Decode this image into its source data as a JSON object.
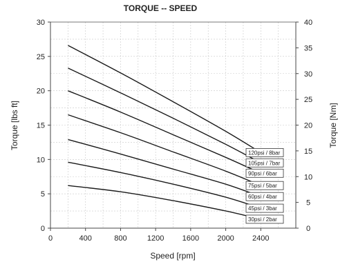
{
  "chart_data": {
    "type": "line",
    "title": "TORQUE -- SPEED",
    "xlabel": "Speed [rpm]",
    "ylabel": "Torque [lbs ft]",
    "y2label": "Torque [Nm]",
    "xlim": [
      0,
      2800
    ],
    "ylim": [
      0,
      30
    ],
    "y2lim": [
      0,
      40
    ],
    "xticks": [
      "0",
      "400",
      "800",
      "1200",
      "1600",
      "2000",
      "2400"
    ],
    "yticks": [
      "0",
      "5",
      "10",
      "15",
      "20",
      "25",
      "30"
    ],
    "y2ticks": [
      "0",
      "5",
      "10",
      "15",
      "20",
      "25",
      "30",
      "35",
      "40"
    ],
    "grid": true,
    "series": [
      {
        "name": "30psi / 2bar",
        "x": [
          200,
          800,
          1400,
          2000,
          2400
        ],
        "y": [
          6.2,
          5.3,
          4.0,
          2.5,
          1.3
        ]
      },
      {
        "name": "45psi / 3bar",
        "x": [
          200,
          800,
          1400,
          2000,
          2400
        ],
        "y": [
          9.6,
          8.1,
          6.4,
          4.5,
          2.9
        ]
      },
      {
        "name": "60psi / 4bar",
        "x": [
          200,
          800,
          1400,
          2000,
          2400
        ],
        "y": [
          12.9,
          10.8,
          8.6,
          6.4,
          4.6
        ]
      },
      {
        "name": "75psi / 5bar",
        "x": [
          200,
          800,
          1400,
          2000,
          2400
        ],
        "y": [
          16.5,
          13.9,
          11.1,
          8.3,
          6.2
        ]
      },
      {
        "name": "90psi / 6bar",
        "x": [
          200,
          800,
          1400,
          2000,
          2400
        ],
        "y": [
          20.0,
          16.9,
          13.6,
          10.3,
          8.0
        ]
      },
      {
        "name": "105psi / 7bar",
        "x": [
          200,
          800,
          1400,
          2000,
          2400
        ],
        "y": [
          23.3,
          19.7,
          16.0,
          12.2,
          9.5
        ]
      },
      {
        "name": "120psi / 8bar",
        "x": [
          200,
          800,
          1400,
          2000,
          2400
        ],
        "y": [
          26.6,
          22.6,
          18.4,
          14.1,
          11.0
        ]
      }
    ]
  }
}
